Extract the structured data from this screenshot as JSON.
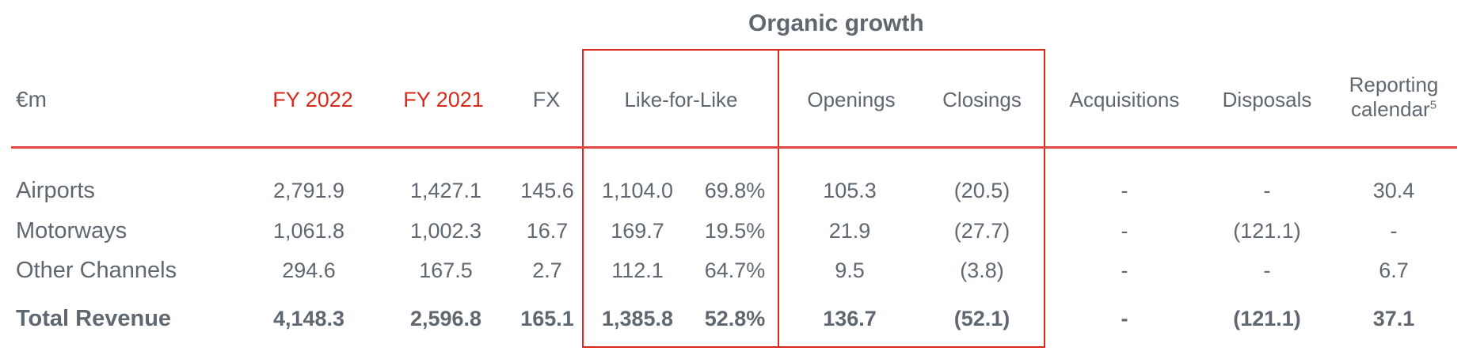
{
  "header": {
    "group_title": "Organic growth",
    "unit": "€m",
    "columns": [
      "FY 2022",
      "FY 2021",
      "FX",
      "Like-for-Like",
      "Openings",
      "Closings",
      "Acquisitions",
      "Disposals",
      "Reporting",
      "calendar"
    ],
    "footnote_mark": "5"
  },
  "colors": {
    "accent": "#d9291c",
    "text": "#5f6770"
  },
  "rows": [
    {
      "label": "Airports",
      "values": [
        "2,791.9",
        "1,427.1",
        "145.6",
        "1,104.0",
        "69.8%",
        "105.3",
        "(20.5)",
        "-",
        "-",
        "30.4"
      ]
    },
    {
      "label": "Motorways",
      "values": [
        "1,061.8",
        "1,002.3",
        "16.7",
        "169.7",
        "19.5%",
        "21.9",
        "(27.7)",
        "-",
        "(121.1)",
        "-"
      ]
    },
    {
      "label": "Other Channels",
      "values": [
        "294.6",
        "167.5",
        "2.7",
        "112.1",
        "64.7%",
        "9.5",
        "(3.8)",
        "-",
        "-",
        "6.7"
      ]
    },
    {
      "label": "Total Revenue",
      "values": [
        "4,148.3",
        "2,596.8",
        "165.1",
        "1,385.8",
        "52.8%",
        "136.7",
        "(52.1)",
        "-",
        "(121.1)",
        "37.1"
      ]
    }
  ]
}
